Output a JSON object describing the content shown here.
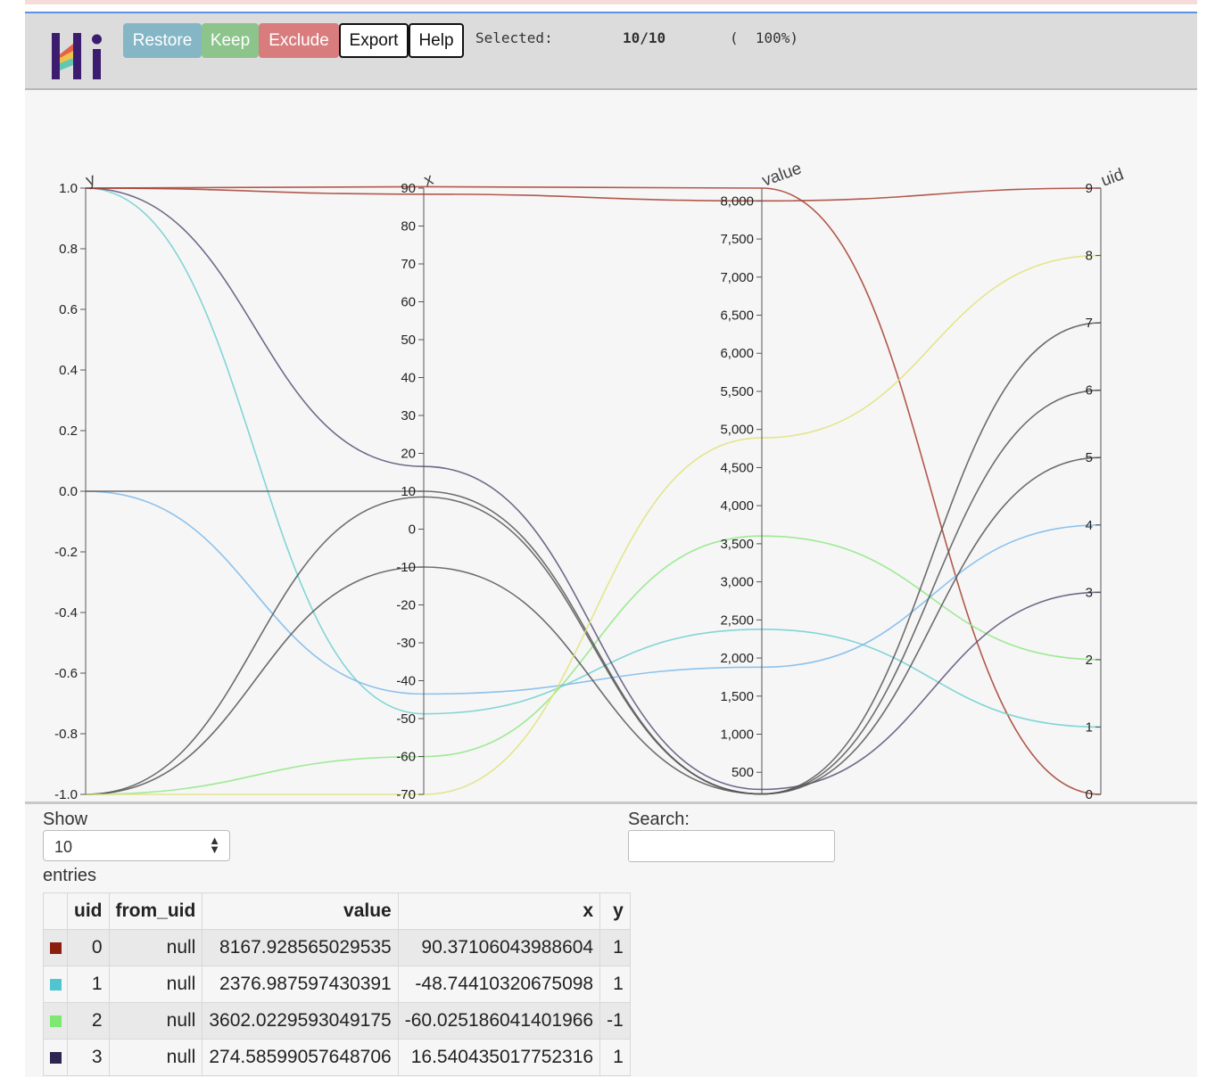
{
  "header": {
    "buttons": {
      "restore": "Restore",
      "keep": "Keep",
      "exclude": "Exclude",
      "export": "Export",
      "help": "Help"
    },
    "selected_label": "Selected:",
    "selected_count": "10/10",
    "selected_percent": "(  100%)"
  },
  "chart_data": {
    "type": "parallel-coordinates",
    "axes": [
      {
        "name": "y",
        "range": [
          -1.0,
          1.0
        ],
        "ticks": [
          "1.0",
          "0.8",
          "0.6",
          "0.4",
          "0.2",
          "0.0",
          "-0.2",
          "-0.4",
          "-0.6",
          "-0.8",
          "-1.0"
        ]
      },
      {
        "name": "x",
        "range": [
          -70,
          90
        ],
        "ticks": [
          "90",
          "80",
          "70",
          "60",
          "50",
          "40",
          "30",
          "20",
          "10",
          "0",
          "-10",
          "-20",
          "-30",
          "-40",
          "-50",
          "-60",
          "-70"
        ]
      },
      {
        "name": "value",
        "range": [
          210,
          8167.93
        ],
        "ticks": [
          "8,000",
          "7,500",
          "7,000",
          "6,500",
          "6,000",
          "5,500",
          "5,000",
          "4,500",
          "4,000",
          "3,500",
          "3,000",
          "2,500",
          "2,000",
          "1,500",
          "1,000",
          "500"
        ]
      },
      {
        "name": "uid",
        "range": [
          0,
          9
        ],
        "ticks": [
          "9",
          "8",
          "7",
          "6",
          "5",
          "4",
          "3",
          "2",
          "1",
          "0"
        ]
      }
    ],
    "series": [
      {
        "uid": 0,
        "y": 1,
        "x": 90.37,
        "value": 8167.93,
        "color": "#a63c2e"
      },
      {
        "uid": 1,
        "y": 1,
        "x": -48.74,
        "value": 2376.99,
        "color": "#6fcfd0"
      },
      {
        "uid": 2,
        "y": -1,
        "x": -60.03,
        "value": 3602.02,
        "color": "#8ee882"
      },
      {
        "uid": 3,
        "y": 1,
        "x": 16.54,
        "value": 274.59,
        "color": "#595078"
      },
      {
        "uid": 4,
        "y": 0,
        "x": -43.5,
        "value": 1880,
        "color": "#7ab8ea"
      },
      {
        "uid": 5,
        "y": -1,
        "x": 8.5,
        "value": 215,
        "color": "#555555"
      },
      {
        "uid": 6,
        "y": 0,
        "x": 10.0,
        "value": 215,
        "color": "#555555"
      },
      {
        "uid": 7,
        "y": -1,
        "x": -10.0,
        "value": 215,
        "color": "#555555"
      },
      {
        "uid": 8,
        "y": -1,
        "x": -70.0,
        "value": 4890,
        "color": "#e0e27a"
      },
      {
        "uid": 9,
        "y": 1,
        "x": 88.4,
        "value": 8000,
        "color": "#a63c2e"
      }
    ]
  },
  "controls": {
    "show_label": "Show",
    "show_value": "10",
    "entries_label": "entries",
    "search_label": "Search:"
  },
  "table": {
    "columns": [
      "",
      "uid",
      "from_uid",
      "value",
      "x",
      "y"
    ],
    "rows": [
      {
        "color": "#8b1e10",
        "uid": "0",
        "from_uid": "null",
        "value": "8167.928565029535",
        "x": "90.37106043988604",
        "y": "1"
      },
      {
        "color": "#4fc6cf",
        "uid": "1",
        "from_uid": "null",
        "value": "2376.987597430391",
        "x": "-48.74410320675098",
        "y": "1"
      },
      {
        "color": "#7ee872",
        "uid": "2",
        "from_uid": "null",
        "value": "3602.0229593049175",
        "x": "-60.025186041401966",
        "y": "-1"
      },
      {
        "color": "#2c2650",
        "uid": "3",
        "from_uid": "null",
        "value": "274.58599057648706",
        "x": "16.540435017752316",
        "y": "1"
      }
    ]
  }
}
